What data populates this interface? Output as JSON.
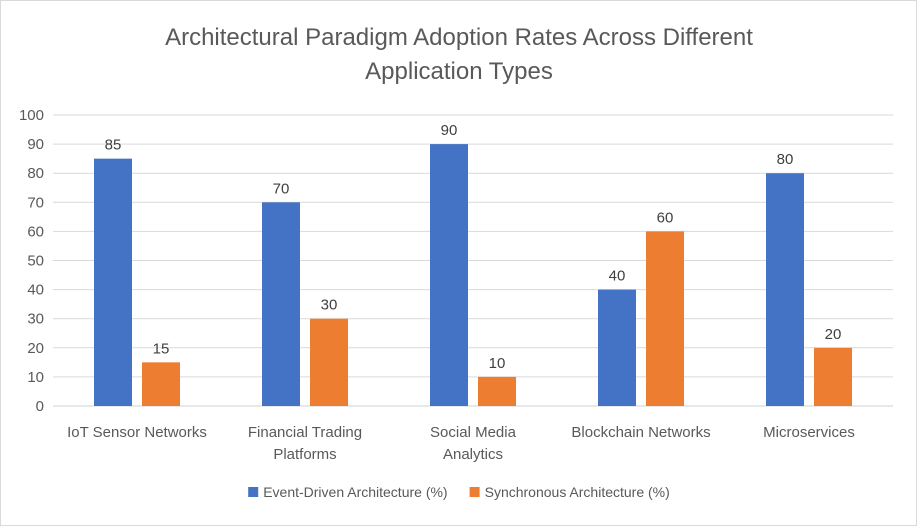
{
  "chart_data": {
    "type": "bar",
    "title_lines": [
      "Architectural Paradigm Adoption Rates Across Different",
      "Application Types"
    ],
    "categories": [
      [
        "IoT Sensor Networks"
      ],
      [
        "Financial Trading",
        "Platforms"
      ],
      [
        "Social Media",
        "Analytics"
      ],
      [
        "Blockchain Networks"
      ],
      [
        "Microservices"
      ]
    ],
    "series": [
      {
        "name": "Event-Driven Architecture (%)",
        "color": "#4472c4",
        "values": [
          85,
          70,
          90,
          40,
          80
        ]
      },
      {
        "name": "Synchronous Architecture (%)",
        "color": "#ed7d31",
        "values": [
          15,
          30,
          10,
          60,
          20
        ]
      }
    ],
    "ylim": [
      0,
      100
    ],
    "yticks": [
      "0",
      "10",
      "20",
      "30",
      "40",
      "50",
      "60",
      "70",
      "80",
      "90",
      "100"
    ],
    "grid": true,
    "legend_position": "bottom"
  }
}
